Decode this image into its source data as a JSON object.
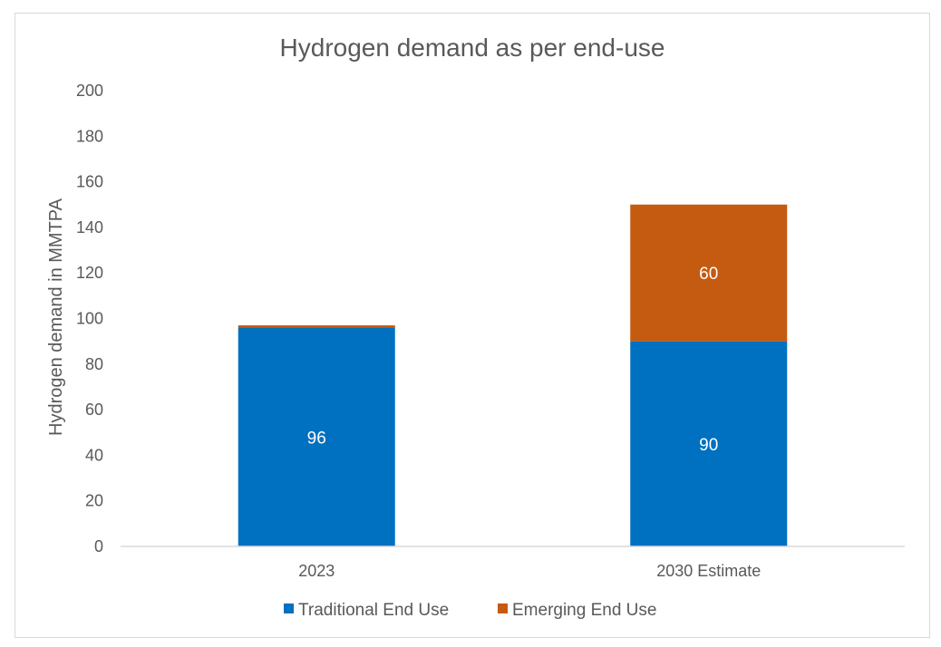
{
  "chart_data": {
    "type": "bar",
    "stacked": true,
    "title": "Hydrogen demand as per end-use",
    "xlabel": "",
    "ylabel": "Hydrogen demand in MMTPA",
    "categories": [
      "2023",
      "2030 Estimate"
    ],
    "series": [
      {
        "name": "Traditional End Use",
        "color": "#0070C0",
        "values": [
          96,
          90
        ],
        "labels": [
          "96",
          "90"
        ]
      },
      {
        "name": "Emerging End Use",
        "color": "#C55A11",
        "values": [
          1,
          60
        ],
        "labels": [
          "",
          "60"
        ]
      }
    ],
    "ylim": [
      0,
      200
    ],
    "yticks": [
      "0",
      "20",
      "40",
      "60",
      "80",
      "100",
      "120",
      "140",
      "160",
      "180",
      "200"
    ],
    "grid": false,
    "legend": "bottom"
  }
}
